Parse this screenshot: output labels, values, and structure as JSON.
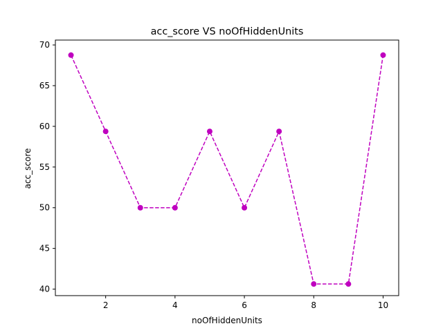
{
  "chart_data": {
    "type": "line",
    "title": "acc_score VS noOfHiddenUnits",
    "xlabel": "noOfHiddenUnits",
    "ylabel": "acc_score",
    "xlim": [
      0.55,
      10.45
    ],
    "ylim": [
      39.2,
      70.6
    ],
    "x_ticks": [
      2,
      4,
      6,
      8,
      10
    ],
    "y_ticks": [
      40,
      45,
      50,
      55,
      60,
      65,
      70
    ],
    "grid": false,
    "series": [
      {
        "color": "#bf00bf",
        "line_style": "dashed",
        "marker": "circle",
        "x": [
          1,
          2,
          3,
          4,
          5,
          6,
          7,
          8,
          9,
          10
        ],
        "values": [
          68.75,
          59.38,
          50.0,
          50.0,
          59.38,
          50.0,
          59.38,
          40.63,
          40.63,
          68.75
        ]
      }
    ]
  }
}
